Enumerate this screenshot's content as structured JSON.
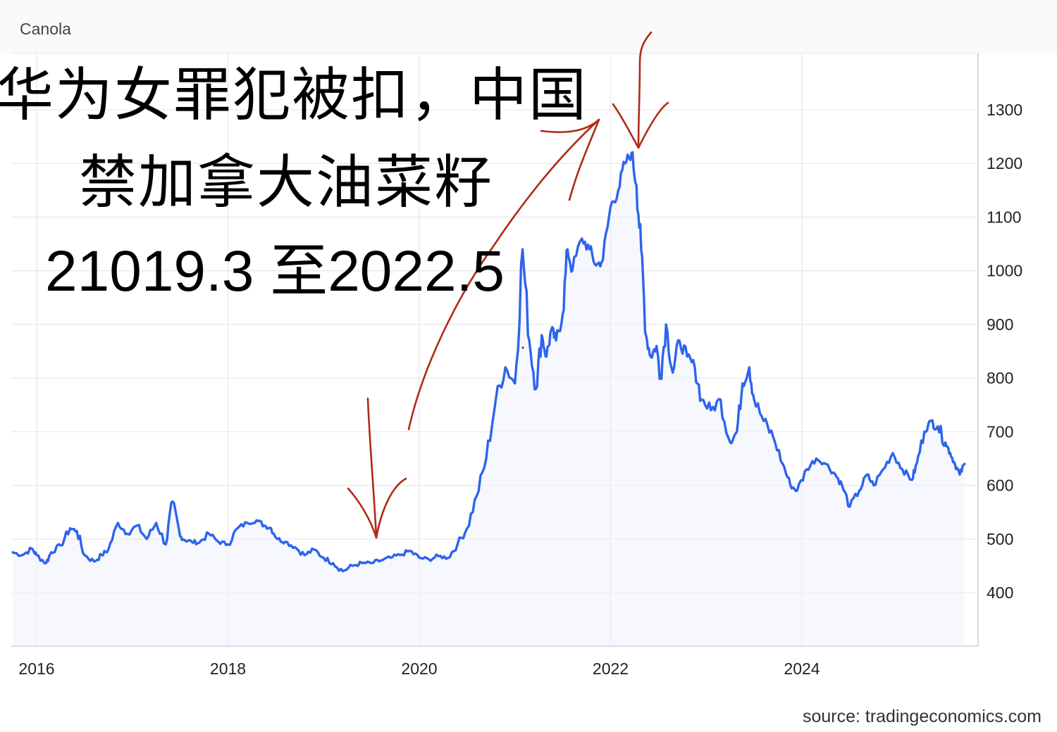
{
  "header": {
    "title": "Canola"
  },
  "annotation": {
    "line1": "华为女罪犯被扣，中国",
    "line2": "禁加拿大油菜籽",
    "line3": "21019.3 至2022.5"
  },
  "source": "source: tradingeconomics.com",
  "colors": {
    "line": "#2e64ec",
    "grid": "#e9e9ec",
    "annotation_ink": "#b02a17",
    "area": "#eef2fd"
  },
  "chart_data": {
    "type": "line",
    "title": "Canola",
    "xlabel": "",
    "ylabel": "",
    "x_ticks": [
      "2016",
      "2018",
      "2020",
      "2022",
      "2024"
    ],
    "y_ticks": [
      400,
      500,
      600,
      700,
      800,
      900,
      1000,
      1100,
      1200,
      1300
    ],
    "xlim": [
      2015.7,
      2025.9
    ],
    "ylim": [
      300,
      1400
    ],
    "grid": true,
    "y_axis_side": "right",
    "series": [
      {
        "x": [
          2015.75,
          2015.85,
          2015.95,
          2016.0,
          2016.1,
          2016.15,
          2016.25,
          2016.35,
          2016.42,
          2016.5,
          2016.6,
          2016.68,
          2016.75,
          2016.85,
          2016.95,
          2017.05,
          2017.15,
          2017.25,
          2017.35,
          2017.42,
          2017.5,
          2017.55,
          2017.62,
          2017.7,
          2017.8,
          2017.9,
          2018.0,
          2018.1,
          2018.2,
          2018.3,
          2018.38,
          2018.45,
          2018.52,
          2018.6,
          2018.7,
          2018.8,
          2018.9,
          2019.0,
          2019.1,
          2019.2,
          2019.3,
          2019.4,
          2019.5,
          2019.6,
          2019.7,
          2019.8,
          2019.9,
          2020.0,
          2020.1,
          2020.2,
          2020.3,
          2020.4,
          2020.5,
          2020.6,
          2020.7,
          2020.8,
          2020.9,
          2021.0,
          2021.08,
          2021.15,
          2021.22,
          2021.28,
          2021.33,
          2021.38,
          2021.43,
          2021.5,
          2021.55,
          2021.6,
          2021.7,
          2021.78,
          2021.85,
          2021.92,
          2022.0,
          2022.08,
          2022.15,
          2022.22,
          2022.27,
          2022.32,
          2022.37,
          2022.42,
          2022.48,
          2022.52,
          2022.58,
          2022.65,
          2022.72,
          2022.8,
          2022.88,
          2022.95,
          2023.05,
          2023.15,
          2023.25,
          2023.32,
          2023.38,
          2023.45,
          2023.5,
          2023.6,
          2023.7,
          2023.8,
          2023.88,
          2023.95,
          2024.05,
          2024.15,
          2024.25,
          2024.35,
          2024.42,
          2024.5,
          2024.6,
          2024.68,
          2024.75,
          2024.85,
          2024.95,
          2025.05,
          2025.15,
          2025.2,
          2025.28,
          2025.35,
          2025.42,
          2025.5,
          2025.55,
          2025.6,
          2025.65,
          2025.7
        ],
        "values": [
          475,
          470,
          482,
          470,
          455,
          475,
          488,
          520,
          515,
          470,
          458,
          470,
          480,
          530,
          510,
          525,
          500,
          530,
          490,
          570,
          505,
          498,
          495,
          493,
          510,
          495,
          490,
          520,
          530,
          535,
          525,
          520,
          500,
          495,
          485,
          470,
          480,
          465,
          455,
          440,
          450,
          455,
          455,
          460,
          465,
          470,
          478,
          465,
          462,
          468,
          465,
          490,
          520,
          580,
          650,
          760,
          820,
          790,
          1040,
          870,
          780,
          880,
          840,
          890,
          870,
          920,
          1040,
          1000,
          1060,
          1040,
          1010,
          1020,
          1120,
          1150,
          1200,
          1220,
          1160,
          1040,
          880,
          840,
          860,
          800,
          900,
          810,
          870,
          840,
          820,
          760,
          740,
          760,
          680,
          700,
          790,
          820,
          760,
          720,
          690,
          640,
          600,
          590,
          630,
          650,
          640,
          620,
          600,
          560,
          590,
          620,
          600,
          630,
          660,
          630,
          610,
          640,
          700,
          720,
          710,
          680,
          660,
          640,
          620,
          640
        ]
      }
    ]
  }
}
